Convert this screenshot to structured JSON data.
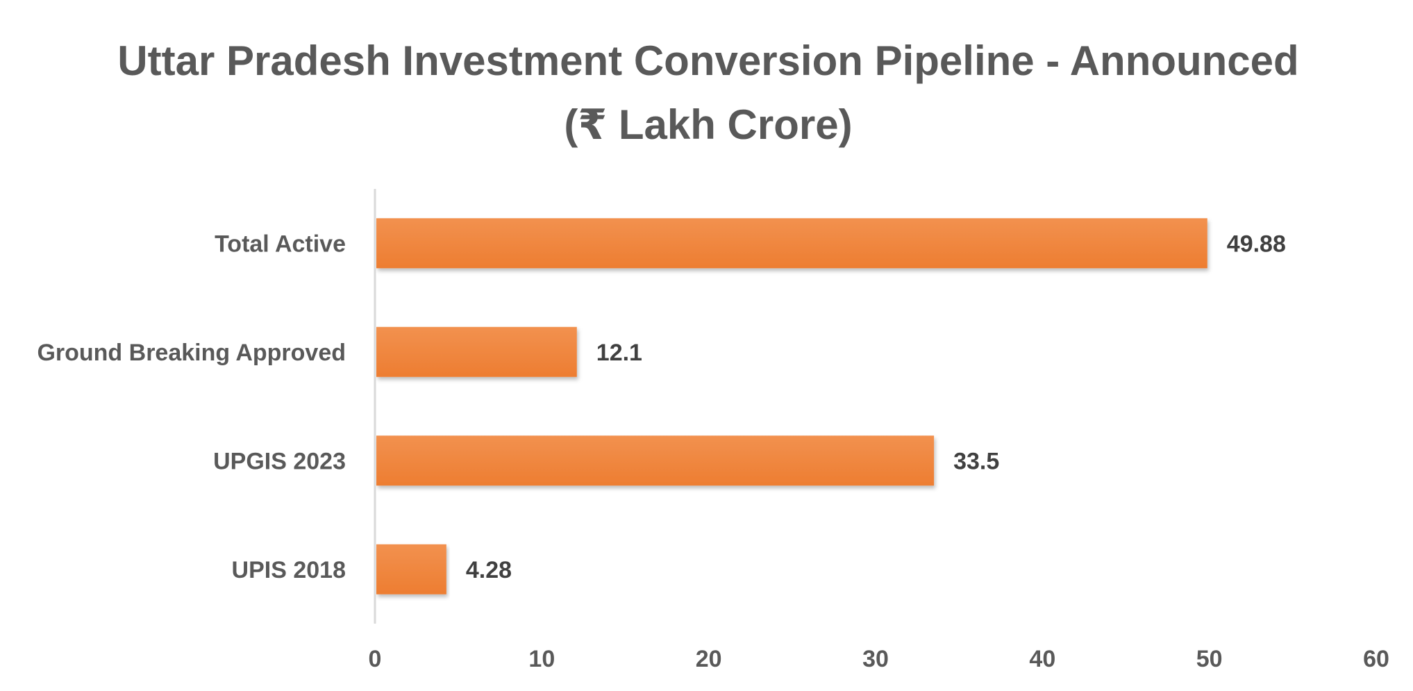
{
  "chart_data": {
    "type": "bar",
    "orientation": "horizontal",
    "title": "Uttar Pradesh Investment Conversion Pipeline - Announced (₹ Lakh Crore)",
    "categories": [
      "Total Active",
      "Ground Breaking Approved",
      "UPGIS 2023",
      "UPIS 2018"
    ],
    "values": [
      49.88,
      12.1,
      33.5,
      4.28
    ],
    "data_labels": [
      "49.88",
      "12.1",
      "33.5",
      "4.28"
    ],
    "xlim": [
      0,
      60
    ],
    "xticks": [
      0,
      10,
      20,
      30,
      40,
      50,
      60
    ],
    "grid": false,
    "legend": "none",
    "bar_color": "#ED7D31",
    "bar_color_light": "#F2914F",
    "axis_color": "#D9D9D9"
  }
}
